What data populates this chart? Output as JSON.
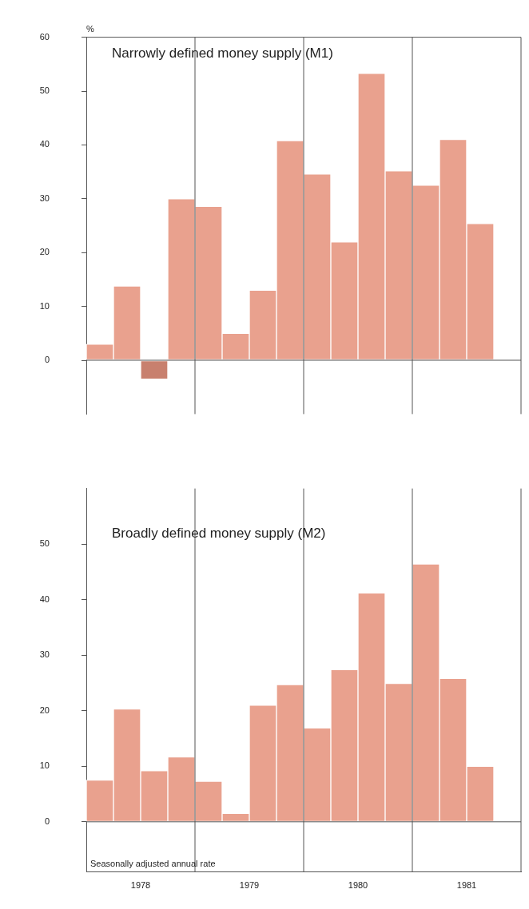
{
  "chart_data": [
    {
      "type": "bar",
      "title": "Narrowly defined money supply (M1)",
      "ylabel": "%",
      "x": [
        1978.125,
        1978.375,
        1978.625,
        1978.875,
        1979.125,
        1979.375,
        1979.625,
        1979.875,
        1980.125,
        1980.375,
        1980.625,
        1980.875,
        1981.125,
        1981.375,
        1981.625
      ],
      "values": [
        3.0,
        13.8,
        -3.5,
        30.0,
        28.6,
        5.0,
        13.0,
        40.8,
        34.6,
        22.0,
        53.3,
        35.2,
        32.5,
        41.0,
        25.4
      ],
      "colors": [
        "#e9a18e",
        "#e9a18e",
        "#c8806e",
        "#e9a18e",
        "#e9a18e",
        "#e9a18e",
        "#e9a18e",
        "#e9a18e",
        "#e9a18e",
        "#e9a18e",
        "#e9a18e",
        "#e9a18e",
        "#e9a18e",
        "#e9a18e",
        "#e9a18e"
      ],
      "xlim": [
        1978,
        1982
      ],
      "ylim": [
        -10,
        60
      ],
      "yticks": [
        0,
        10,
        20,
        30,
        40,
        50,
        60
      ],
      "tick_labels": "y",
      "ref_lines": [
        {
          "axis": "x",
          "value": 1979,
          "color": "#555555"
        },
        {
          "axis": "x",
          "value": 1980,
          "color": "#555555"
        },
        {
          "axis": "x",
          "value": 1981,
          "color": "#555555"
        }
      ]
    },
    {
      "type": "bar",
      "title": "Broadly defined money supply (M2)",
      "x": [
        1978.125,
        1978.375,
        1978.625,
        1978.875,
        1979.125,
        1979.375,
        1979.625,
        1979.875,
        1980.125,
        1980.375,
        1980.625,
        1980.875,
        1981.125,
        1981.375,
        1981.625
      ],
      "values": [
        7.5,
        20.3,
        9.2,
        11.7,
        7.3,
        1.5,
        21.0,
        24.7,
        16.9,
        27.4,
        41.2,
        24.9,
        46.4,
        25.8,
        10.0
      ],
      "color": "#e9a18e",
      "xlim": [
        1978,
        1982
      ],
      "xticks": [
        {
          "value": 1978.5,
          "label": "1978"
        },
        {
          "value": 1979.5,
          "label": "1979"
        },
        {
          "value": 1980.5,
          "label": "1980"
        },
        {
          "value": 1981.5,
          "label": "1981"
        }
      ],
      "ylim": [
        -9,
        60
      ],
      "yticks": [
        0,
        10,
        20,
        30,
        40,
        50
      ],
      "ref_lines": [
        {
          "axis": "x",
          "value": 1979,
          "color": "#555555"
        },
        {
          "axis": "x",
          "value": 1980,
          "color": "#555555"
        },
        {
          "axis": "x",
          "value": 1981,
          "color": "#555555"
        }
      ],
      "annotations": [
        "Seasonally adjusted annual rate"
      ]
    }
  ]
}
